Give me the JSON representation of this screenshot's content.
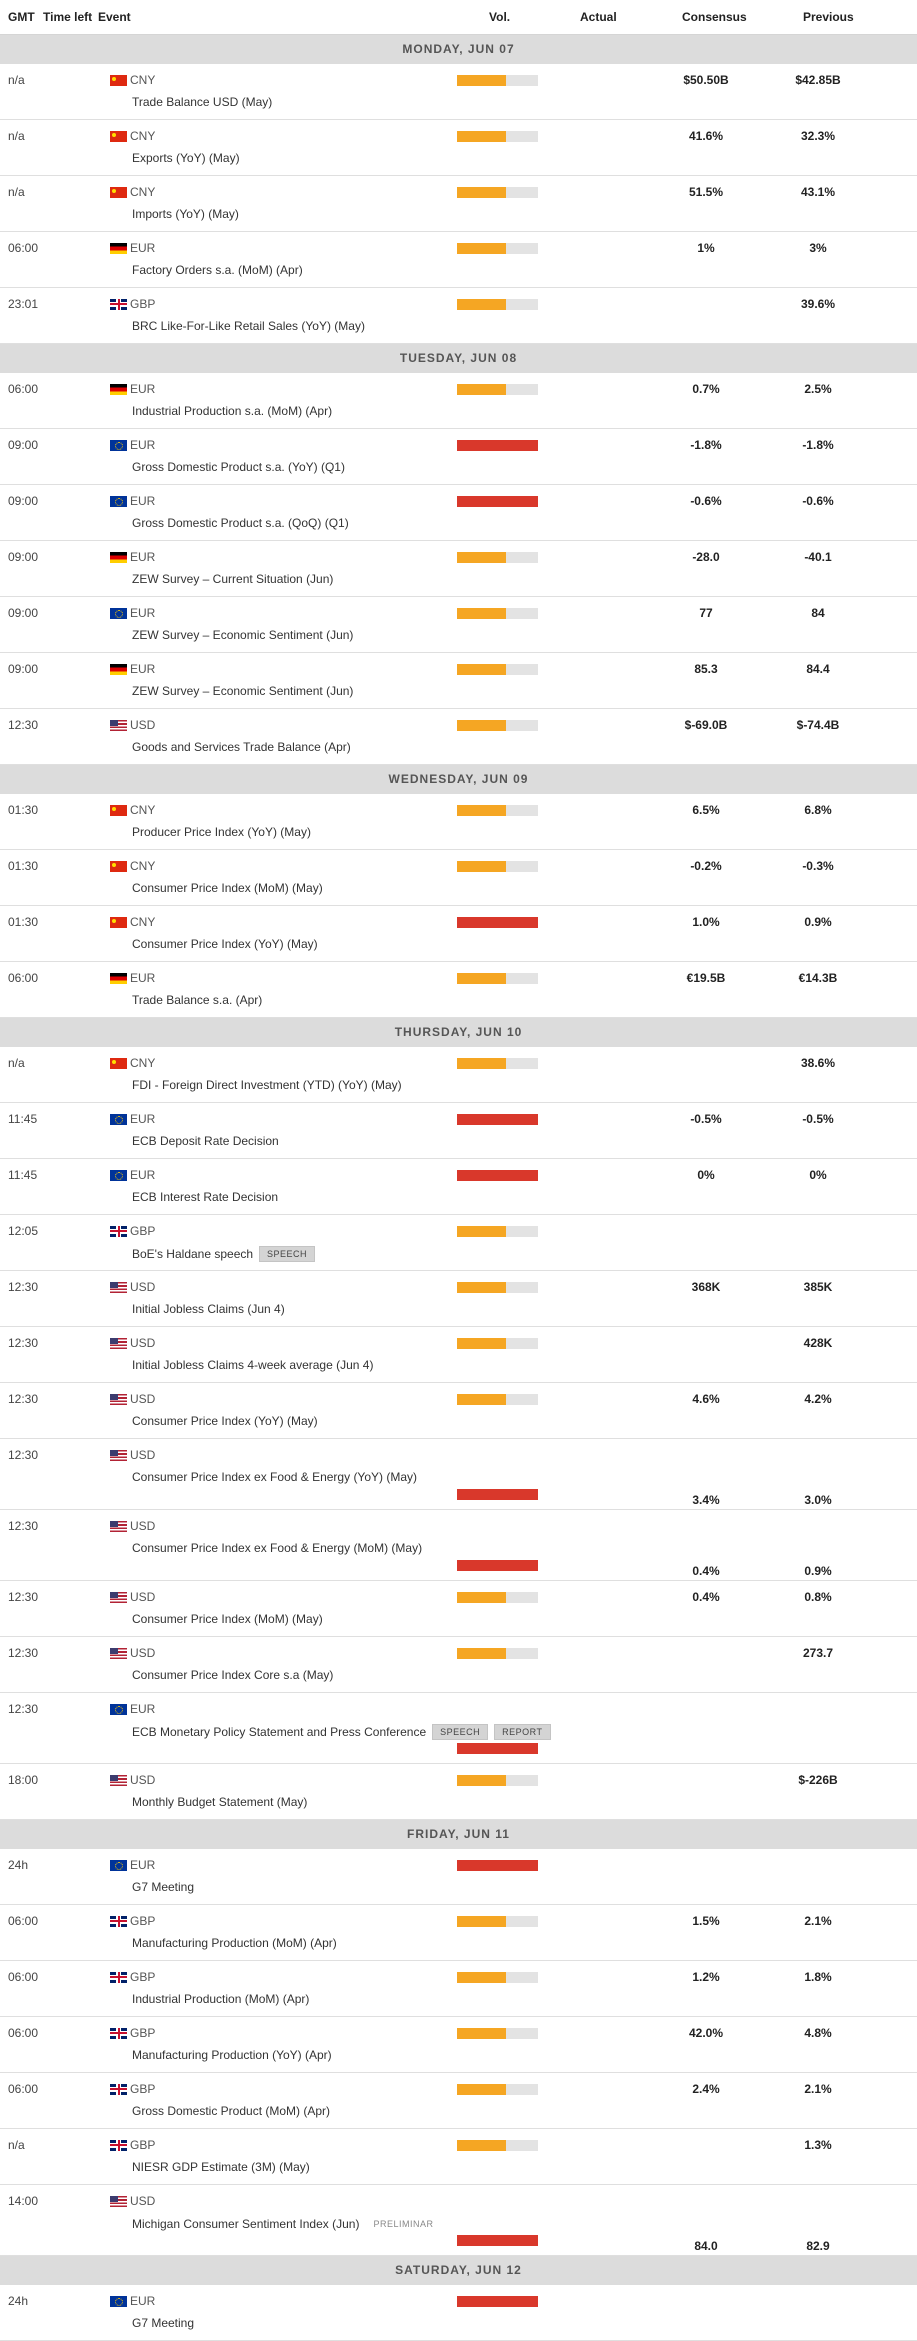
{
  "header": {
    "gmt": "GMT",
    "time_left": "Time left",
    "event": "Event",
    "vol": "Vol.",
    "actual": "Actual",
    "consensus": "Consensus",
    "previous": "Previous"
  },
  "colors": {
    "medium": "#f5a623",
    "high": "#d9382b",
    "track": "#e3e3e3"
  },
  "days": [
    {
      "label": "MONDAY, JUN 07",
      "events": [
        {
          "time": "n/a",
          "currency": "CNY",
          "flag": "cn",
          "name": "Trade Balance USD (May)",
          "vol": "medium",
          "consensus": "$50.50B",
          "previous": "$42.85B"
        },
        {
          "time": "n/a",
          "currency": "CNY",
          "flag": "cn",
          "name": "Exports (YoY) (May)",
          "vol": "medium",
          "consensus": "41.6%",
          "previous": "32.3%"
        },
        {
          "time": "n/a",
          "currency": "CNY",
          "flag": "cn",
          "name": "Imports (YoY) (May)",
          "vol": "medium",
          "consensus": "51.5%",
          "previous": "43.1%"
        },
        {
          "time": "06:00",
          "currency": "EUR",
          "flag": "de",
          "name": "Factory Orders s.a. (MoM) (Apr)",
          "vol": "medium",
          "consensus": "1%",
          "previous": "3%"
        },
        {
          "time": "23:01",
          "currency": "GBP",
          "flag": "gb",
          "name": "BRC Like-For-Like Retail Sales (YoY) (May)",
          "vol": "medium",
          "consensus": "",
          "previous": "39.6%"
        }
      ]
    },
    {
      "label": "TUESDAY, JUN 08",
      "events": [
        {
          "time": "06:00",
          "currency": "EUR",
          "flag": "de",
          "name": "Industrial Production s.a. (MoM) (Apr)",
          "vol": "medium",
          "consensus": "0.7%",
          "previous": "2.5%"
        },
        {
          "time": "09:00",
          "currency": "EUR",
          "flag": "eu",
          "name": "Gross Domestic Product s.a. (YoY) (Q1)",
          "vol": "high",
          "consensus": "-1.8%",
          "previous": "-1.8%"
        },
        {
          "time": "09:00",
          "currency": "EUR",
          "flag": "eu",
          "name": "Gross Domestic Product s.a. (QoQ) (Q1)",
          "vol": "high",
          "consensus": "-0.6%",
          "previous": "-0.6%"
        },
        {
          "time": "09:00",
          "currency": "EUR",
          "flag": "de",
          "name": "ZEW Survey – Current Situation (Jun)",
          "vol": "medium",
          "consensus": "-28.0",
          "previous": "-40.1"
        },
        {
          "time": "09:00",
          "currency": "EUR",
          "flag": "eu",
          "name": "ZEW Survey – Economic Sentiment (Jun)",
          "vol": "medium",
          "consensus": "77",
          "previous": "84"
        },
        {
          "time": "09:00",
          "currency": "EUR",
          "flag": "de",
          "name": "ZEW Survey – Economic Sentiment (Jun)",
          "vol": "medium",
          "consensus": "85.3",
          "previous": "84.4"
        },
        {
          "time": "12:30",
          "currency": "USD",
          "flag": "us",
          "name": "Goods and Services Trade Balance (Apr)",
          "vol": "medium",
          "consensus": "$-69.0B",
          "previous": "$-74.4B"
        }
      ]
    },
    {
      "label": "WEDNESDAY, JUN 09",
      "events": [
        {
          "time": "01:30",
          "currency": "CNY",
          "flag": "cn",
          "name": "Producer Price Index (YoY) (May)",
          "vol": "medium",
          "consensus": "6.5%",
          "previous": "6.8%"
        },
        {
          "time": "01:30",
          "currency": "CNY",
          "flag": "cn",
          "name": "Consumer Price Index (MoM) (May)",
          "vol": "medium",
          "consensus": "-0.2%",
          "previous": "-0.3%"
        },
        {
          "time": "01:30",
          "currency": "CNY",
          "flag": "cn",
          "name": "Consumer Price Index (YoY) (May)",
          "vol": "high",
          "consensus": "1.0%",
          "previous": "0.9%"
        },
        {
          "time": "06:00",
          "currency": "EUR",
          "flag": "de",
          "name": "Trade Balance s.a. (Apr)",
          "vol": "medium",
          "consensus": "€19.5B",
          "previous": "€14.3B"
        }
      ]
    },
    {
      "label": "THURSDAY, JUN 10",
      "events": [
        {
          "time": "n/a",
          "currency": "CNY",
          "flag": "cn",
          "name": "FDI - Foreign Direct Investment (YTD) (YoY) (May)",
          "vol": "medium",
          "consensus": "",
          "previous": "38.6%"
        },
        {
          "time": "11:45",
          "currency": "EUR",
          "flag": "eu",
          "name": "ECB Deposit Rate Decision",
          "vol": "high",
          "consensus": "-0.5%",
          "previous": "-0.5%"
        },
        {
          "time": "11:45",
          "currency": "EUR",
          "flag": "eu",
          "name": "ECB Interest Rate Decision",
          "vol": "high",
          "consensus": "0%",
          "previous": "0%"
        },
        {
          "time": "12:05",
          "currency": "GBP",
          "flag": "gb",
          "name": "BoE's Haldane speech",
          "vol": "medium",
          "consensus": "",
          "previous": "",
          "tags": [
            "SPEECH"
          ]
        },
        {
          "time": "12:30",
          "currency": "USD",
          "flag": "us",
          "name": "Initial Jobless Claims (Jun 4)",
          "vol": "medium",
          "consensus": "368K",
          "previous": "385K"
        },
        {
          "time": "12:30",
          "currency": "USD",
          "flag": "us",
          "name": "Initial Jobless Claims 4-week average (Jun 4)",
          "vol": "medium",
          "consensus": "",
          "previous": "428K"
        },
        {
          "time": "12:30",
          "currency": "USD",
          "flag": "us",
          "name": "Consumer Price Index (YoY) (May)",
          "vol": "medium",
          "consensus": "4.6%",
          "previous": "4.2%"
        },
        {
          "time": "12:30",
          "currency": "USD",
          "flag": "us",
          "name": "Consumer Price Index ex Food & Energy (YoY) (May)",
          "vol": "high",
          "consensus": "3.4%",
          "previous": "3.0%",
          "tall": true
        },
        {
          "time": "12:30",
          "currency": "USD",
          "flag": "us",
          "name": "Consumer Price Index ex Food & Energy (MoM) (May)",
          "vol": "high",
          "consensus": "0.4%",
          "previous": "0.9%",
          "tall": true
        },
        {
          "time": "12:30",
          "currency": "USD",
          "flag": "us",
          "name": "Consumer Price Index (MoM) (May)",
          "vol": "medium",
          "consensus": "0.4%",
          "previous": "0.8%"
        },
        {
          "time": "12:30",
          "currency": "USD",
          "flag": "us",
          "name": "Consumer Price Index Core s.a (May)",
          "vol": "medium",
          "consensus": "",
          "previous": "273.7"
        },
        {
          "time": "12:30",
          "currency": "EUR",
          "flag": "eu",
          "name": "ECB Monetary Policy Statement and Press Conference",
          "vol": "high",
          "consensus": "",
          "previous": "",
          "tags": [
            "SPEECH",
            "REPORT"
          ],
          "tall": true
        },
        {
          "time": "18:00",
          "currency": "USD",
          "flag": "us",
          "name": "Monthly Budget Statement (May)",
          "vol": "medium",
          "consensus": "",
          "previous": "$-226B"
        }
      ]
    },
    {
      "label": "FRIDAY, JUN 11",
      "events": [
        {
          "time": "24h",
          "currency": "EUR",
          "flag": "eu",
          "name": "G7 Meeting",
          "vol": "high",
          "consensus": "",
          "previous": ""
        },
        {
          "time": "06:00",
          "currency": "GBP",
          "flag": "gb",
          "name": "Manufacturing Production (MoM) (Apr)",
          "vol": "medium",
          "consensus": "1.5%",
          "previous": "2.1%"
        },
        {
          "time": "06:00",
          "currency": "GBP",
          "flag": "gb",
          "name": "Industrial Production (MoM) (Apr)",
          "vol": "medium",
          "consensus": "1.2%",
          "previous": "1.8%"
        },
        {
          "time": "06:00",
          "currency": "GBP",
          "flag": "gb",
          "name": "Manufacturing Production (YoY) (Apr)",
          "vol": "medium",
          "consensus": "42.0%",
          "previous": "4.8%"
        },
        {
          "time": "06:00",
          "currency": "GBP",
          "flag": "gb",
          "name": "Gross Domestic Product (MoM) (Apr)",
          "vol": "medium",
          "consensus": "2.4%",
          "previous": "2.1%"
        },
        {
          "time": "n/a",
          "currency": "GBP",
          "flag": "gb",
          "name": "NIESR GDP Estimate (3M) (May)",
          "vol": "medium",
          "consensus": "",
          "previous": "1.3%"
        },
        {
          "time": "14:00",
          "currency": "USD",
          "flag": "us",
          "name": "Michigan Consumer Sentiment Index (Jun)",
          "vol": "high",
          "consensus": "84.0",
          "previous": "82.9",
          "note": "PRELIMINAR",
          "tall": true
        }
      ]
    },
    {
      "label": "SATURDAY, JUN 12",
      "events": [
        {
          "time": "24h",
          "currency": "EUR",
          "flag": "eu",
          "name": "G7 Meeting",
          "vol": "high",
          "consensus": "",
          "previous": ""
        }
      ]
    }
  ]
}
